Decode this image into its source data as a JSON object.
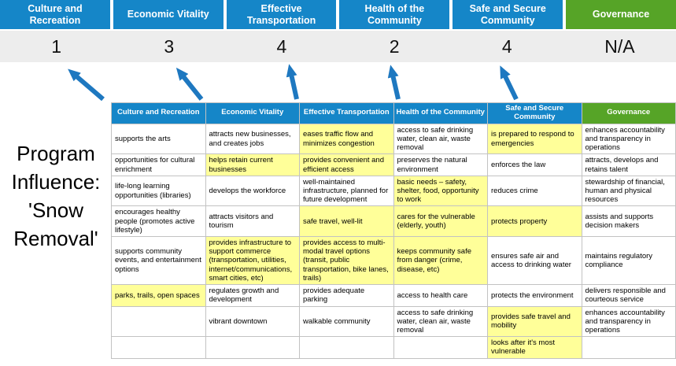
{
  "title": "Program Influence: 'Snow Removal'",
  "colors": {
    "pillar_blue": "#1586C8",
    "governance_green": "#56A427",
    "highlight_yellow": "#FFFF99",
    "score_band_bg": "#EDEDED",
    "arrow_blue": "#1E78C0"
  },
  "pillars": [
    {
      "label": "Culture and Recreation",
      "score": "1",
      "theme": "blue"
    },
    {
      "label": "Economic Vitality",
      "score": "3",
      "theme": "blue"
    },
    {
      "label": "Effective Transportation",
      "score": "4",
      "theme": "blue"
    },
    {
      "label": "Health of the Community",
      "score": "2",
      "theme": "blue"
    },
    {
      "label": "Safe and Secure Community",
      "score": "4",
      "theme": "blue"
    },
    {
      "label": "Governance",
      "score": "N/A",
      "theme": "green"
    }
  ],
  "matrix": {
    "rows": [
      [
        {
          "text": "supports the arts",
          "highlight": false
        },
        {
          "text": "attracts new businesses, and creates jobs",
          "highlight": false
        },
        {
          "text": "eases traffic flow and minimizes congestion",
          "highlight": true
        },
        {
          "text": "access to safe drinking water, clean air, waste removal",
          "highlight": false
        },
        {
          "text": "is prepared to respond to emergencies",
          "highlight": true
        },
        {
          "text": "enhances accountability and transparency in operations",
          "highlight": false
        }
      ],
      [
        {
          "text": "opportunities for cultural enrichment",
          "highlight": false
        },
        {
          "text": "helps retain current businesses",
          "highlight": true
        },
        {
          "text": "provides convenient and efficient access",
          "highlight": true
        },
        {
          "text": "preserves the natural environment",
          "highlight": false
        },
        {
          "text": "enforces the law",
          "highlight": false
        },
        {
          "text": "attracts, develops and retains talent",
          "highlight": false
        }
      ],
      [
        {
          "text": "life-long learning opportunities (libraries)",
          "highlight": false
        },
        {
          "text": "develops the workforce",
          "highlight": false
        },
        {
          "text": "well-maintained infrastructure, planned for future development",
          "highlight": false
        },
        {
          "text": "basic needs – safety, shelter, food, opportunity to work",
          "highlight": true
        },
        {
          "text": "reduces crime",
          "highlight": false
        },
        {
          "text": "stewardship of financial, human and physical resources",
          "highlight": false
        }
      ],
      [
        {
          "text": "encourages healthy people (promotes active lifestyle)",
          "highlight": false
        },
        {
          "text": "attracts visitors and tourism",
          "highlight": false
        },
        {
          "text": "safe travel, well-lit",
          "highlight": true
        },
        {
          "text": "cares for the vulnerable (elderly, youth)",
          "highlight": true
        },
        {
          "text": "protects property",
          "highlight": true
        },
        {
          "text": "assists and supports decision makers",
          "highlight": false
        }
      ],
      [
        {
          "text": "supports community events, and entertainment options",
          "highlight": false
        },
        {
          "text": "provides infrastructure to support commerce (transportation, utilities, internet/communications, smart cities, etc)",
          "highlight": true
        },
        {
          "text": "provides access to multi-modal travel options (transit, public transportation, bike lanes, trails)",
          "highlight": true
        },
        {
          "text": "keeps community safe from danger (crime, disease, etc)",
          "highlight": true
        },
        {
          "text": "ensures safe air and access to drinking water",
          "highlight": false
        },
        {
          "text": "maintains regulatory compliance",
          "highlight": false
        }
      ],
      [
        {
          "text": "parks, trails, open spaces",
          "highlight": true
        },
        {
          "text": "regulates growth and development",
          "highlight": false
        },
        {
          "text": "provides adequate parking",
          "highlight": false
        },
        {
          "text": "access to health care",
          "highlight": false
        },
        {
          "text": "protects the environment",
          "highlight": false
        },
        {
          "text": "delivers responsible and courteous service",
          "highlight": false
        }
      ],
      [
        {
          "text": "",
          "highlight": false
        },
        {
          "text": "vibrant downtown",
          "highlight": false
        },
        {
          "text": "walkable community",
          "highlight": false
        },
        {
          "text": "access to safe drinking water, clean air, waste removal",
          "highlight": false
        },
        {
          "text": "provides safe travel and mobility",
          "highlight": true
        },
        {
          "text": "enhances accountability and transparency in operations",
          "highlight": false
        }
      ],
      [
        {
          "text": "",
          "highlight": false
        },
        {
          "text": "",
          "highlight": false
        },
        {
          "text": "",
          "highlight": false
        },
        {
          "text": "",
          "highlight": false
        },
        {
          "text": "looks after it's most vulnerable",
          "highlight": true
        },
        {
          "text": "",
          "highlight": false
        }
      ]
    ]
  }
}
